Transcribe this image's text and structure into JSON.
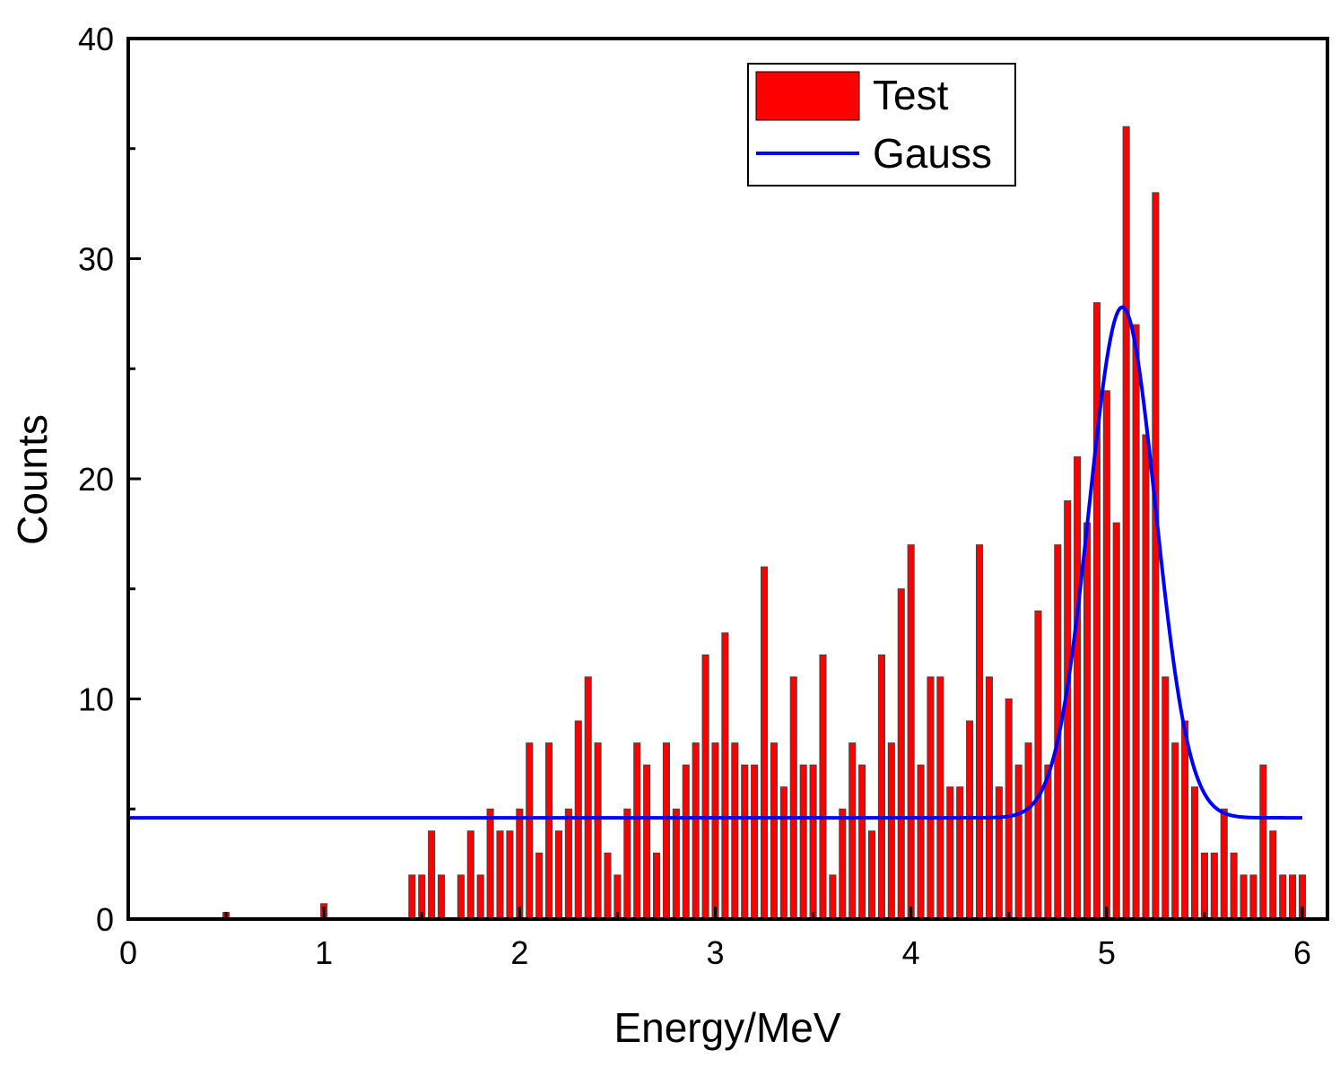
{
  "chart_data": {
    "type": "bar",
    "title": "",
    "xlabel": "Energy/MeV",
    "ylabel": "Counts",
    "xlim": [
      0,
      6
    ],
    "ylim": [
      0,
      40
    ],
    "xticks": [
      "0",
      "1",
      "2",
      "3",
      "4",
      "5",
      "6"
    ],
    "yticks": [
      "0",
      "10",
      "20",
      "30",
      "40"
    ],
    "grid": false,
    "legend_position": "top-right",
    "series": [
      {
        "name": "Test",
        "kind": "bar",
        "color": "#ff0000",
        "bin_width": 0.025,
        "x": [
          0.5,
          1.0,
          1.45,
          1.5,
          1.55,
          1.6,
          1.7,
          1.75,
          1.8,
          1.85,
          1.9,
          1.95,
          2.0,
          2.05,
          2.1,
          2.15,
          2.2,
          2.25,
          2.3,
          2.35,
          2.4,
          2.45,
          2.5,
          2.55,
          2.6,
          2.65,
          2.7,
          2.75,
          2.8,
          2.85,
          2.9,
          2.95,
          3.0,
          3.05,
          3.1,
          3.15,
          3.2,
          3.25,
          3.3,
          3.35,
          3.4,
          3.45,
          3.5,
          3.55,
          3.6,
          3.65,
          3.7,
          3.75,
          3.8,
          3.85,
          3.9,
          3.95,
          4.0,
          4.05,
          4.1,
          4.15,
          4.2,
          4.25,
          4.3,
          4.35,
          4.4,
          4.45,
          4.5,
          4.55,
          4.6,
          4.65,
          4.7,
          4.75,
          4.8,
          4.85,
          4.9,
          4.95,
          5.0,
          5.05,
          5.1,
          5.15,
          5.2,
          5.25,
          5.3,
          5.35,
          5.4,
          5.45,
          5.5,
          5.55,
          5.6,
          5.65,
          5.7,
          5.75,
          5.8,
          5.85,
          5.9,
          5.95,
          6.0
        ],
        "values": [
          0.3,
          0.7,
          2,
          2,
          4,
          2,
          2,
          4,
          2,
          5,
          4,
          4,
          5,
          8,
          3,
          8,
          4,
          5,
          9,
          11,
          8,
          3,
          2,
          5,
          8,
          7,
          3,
          8,
          5,
          7,
          8,
          12,
          8,
          13,
          8,
          7,
          7,
          16,
          8,
          6,
          11,
          7,
          7,
          12,
          2,
          5,
          8,
          7,
          4,
          12,
          8,
          15,
          17,
          7,
          11,
          11,
          6,
          6,
          9,
          17,
          11,
          6,
          10,
          7,
          8,
          14,
          7,
          17,
          19,
          21,
          18,
          28,
          24,
          18,
          36,
          27,
          22,
          33,
          11,
          8,
          9,
          6,
          3,
          3,
          5,
          3,
          2,
          2,
          7,
          4,
          2,
          2,
          2
        ]
      },
      {
        "name": "Gauss",
        "kind": "line",
        "color": "#0000ff",
        "model": {
          "baseline": 4.6,
          "amplitude": 23.2,
          "center": 5.08,
          "sigma": 0.17,
          "x_start": 0,
          "x_end": 6
        }
      }
    ]
  }
}
